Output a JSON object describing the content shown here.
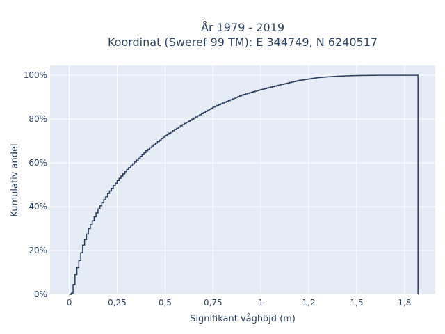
{
  "chart_data": {
    "type": "line",
    "subtype": "ecdf-step",
    "title": "År 1979 - 2019",
    "subtitle": "Koordinat (Sweref 99 TM): E 344749, N 6240517",
    "xlabel": "Signifikant våghöjd (m)",
    "ylabel": "Kumulativ andel",
    "xlim": [
      -0.1,
      1.91
    ],
    "ylim": [
      0,
      1.045
    ],
    "x_ticks": [
      0,
      0.25,
      0.5,
      0.75,
      1,
      1.25,
      1.5,
      1.75
    ],
    "x_tick_labels": [
      "0",
      "0,25",
      "0,5",
      "0,75",
      "1",
      "1,2",
      "1,5",
      "1,8"
    ],
    "y_ticks": [
      0,
      0.2,
      0.4,
      0.6,
      0.8,
      1.0
    ],
    "y_tick_labels": [
      "0%",
      "20%",
      "40%",
      "60%",
      "80%",
      "100%"
    ],
    "grid": true,
    "legend": "none",
    "series": [
      {
        "color": "#2a3f5f",
        "x": [
          0.0,
          0.01,
          0.02,
          0.03,
          0.05,
          0.07,
          0.1,
          0.15,
          0.2,
          0.25,
          0.3,
          0.4,
          0.5,
          0.6,
          0.75,
          0.9,
          1.0,
          1.1,
          1.2,
          1.3,
          1.4,
          1.5,
          1.6,
          1.82,
          1.82
        ],
        "y": [
          0.0,
          0.005,
          0.045,
          0.09,
          0.155,
          0.225,
          0.3,
          0.39,
          0.46,
          0.52,
          0.57,
          0.655,
          0.725,
          0.78,
          0.855,
          0.91,
          0.935,
          0.957,
          0.977,
          0.99,
          0.996,
          0.999,
          1.0,
          1.0,
          0.0
        ]
      }
    ]
  }
}
